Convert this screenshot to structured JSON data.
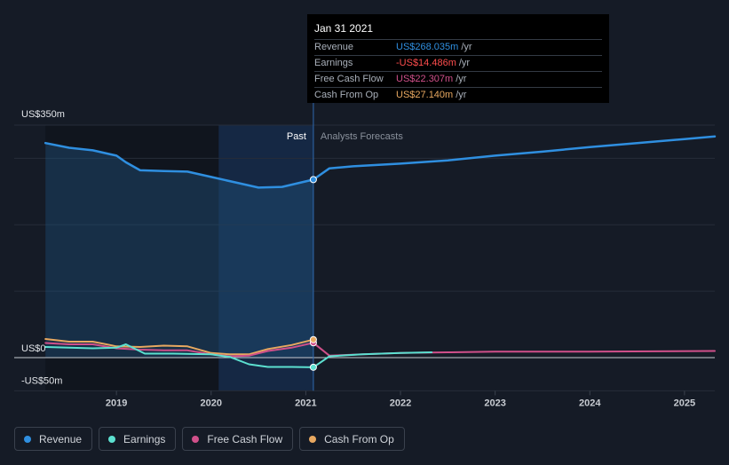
{
  "chart_data": {
    "type": "line",
    "title": "",
    "xlabel": "",
    "ylabel": "",
    "ylim": [
      -50,
      350
    ],
    "y_unit": "US$m",
    "y_axis_labels": [
      {
        "value": 350,
        "label": "US$350m"
      },
      {
        "value": 0,
        "label": "US$0"
      },
      {
        "value": -50,
        "label": "-US$50m"
      }
    ],
    "x_ticks": [
      {
        "x": 2019,
        "label": "2019"
      },
      {
        "x": 2020,
        "label": "2020"
      },
      {
        "x": 2021,
        "label": "2021"
      },
      {
        "x": 2022,
        "label": "2022"
      },
      {
        "x": 2023,
        "label": "2023"
      },
      {
        "x": 2024,
        "label": "2024"
      },
      {
        "x": 2025,
        "label": "2025"
      }
    ],
    "xlim": [
      2017.92,
      2025.32
    ],
    "past_label": "Past",
    "forecast_label": "Analysts Forecasts",
    "divider_x": 2021.08,
    "highlight_start": 2020.08,
    "series": [
      {
        "name": "Revenue",
        "color": "#2f8fe0",
        "points": [
          [
            2018.25,
            323
          ],
          [
            2018.5,
            316
          ],
          [
            2018.75,
            312
          ],
          [
            2019.0,
            304
          ],
          [
            2019.1,
            294
          ],
          [
            2019.25,
            282
          ],
          [
            2019.5,
            281
          ],
          [
            2019.75,
            280
          ],
          [
            2020.0,
            272
          ],
          [
            2020.25,
            264
          ],
          [
            2020.5,
            256
          ],
          [
            2020.75,
            257
          ],
          [
            2021.08,
            268
          ],
          [
            2021.25,
            285
          ],
          [
            2021.5,
            288
          ],
          [
            2022.0,
            292
          ],
          [
            2022.5,
            297
          ],
          [
            2023.0,
            304
          ],
          [
            2023.5,
            310
          ],
          [
            2024.0,
            317
          ],
          [
            2024.5,
            323
          ],
          [
            2025.0,
            329
          ],
          [
            2025.32,
            333
          ]
        ]
      },
      {
        "name": "Earnings",
        "color": "#5ce0d0",
        "points": [
          [
            2018.25,
            16
          ],
          [
            2018.5,
            15
          ],
          [
            2018.75,
            14
          ],
          [
            2019.0,
            15
          ],
          [
            2019.1,
            20
          ],
          [
            2019.3,
            6
          ],
          [
            2019.6,
            6
          ],
          [
            2020.0,
            5
          ],
          [
            2020.2,
            1
          ],
          [
            2020.4,
            -10
          ],
          [
            2020.6,
            -14
          ],
          [
            2020.85,
            -14
          ],
          [
            2021.08,
            -14.5
          ],
          [
            2021.25,
            2
          ],
          [
            2021.6,
            5
          ],
          [
            2022.0,
            7
          ],
          [
            2022.33,
            8
          ]
        ]
      },
      {
        "name": "Free Cash Flow",
        "color": "#d0508a",
        "points": [
          [
            2018.25,
            22
          ],
          [
            2018.5,
            20
          ],
          [
            2018.75,
            20
          ],
          [
            2019.0,
            14
          ],
          [
            2019.25,
            12
          ],
          [
            2019.5,
            11
          ],
          [
            2019.75,
            11
          ],
          [
            2020.0,
            5
          ],
          [
            2020.2,
            2
          ],
          [
            2020.4,
            3
          ],
          [
            2020.6,
            10
          ],
          [
            2020.85,
            15
          ],
          [
            2021.08,
            22.3
          ],
          [
            2021.25,
            3
          ],
          [
            2021.6,
            5
          ],
          [
            2022.0,
            7
          ],
          [
            2022.5,
            8
          ],
          [
            2023.0,
            9
          ],
          [
            2024.0,
            9
          ],
          [
            2025.32,
            10
          ]
        ]
      },
      {
        "name": "Cash From Op",
        "color": "#e8a860",
        "points": [
          [
            2018.25,
            28
          ],
          [
            2018.5,
            24
          ],
          [
            2018.75,
            24
          ],
          [
            2019.0,
            17
          ],
          [
            2019.25,
            16
          ],
          [
            2019.5,
            18
          ],
          [
            2019.75,
            17
          ],
          [
            2020.0,
            7
          ],
          [
            2020.2,
            5
          ],
          [
            2020.4,
            5
          ],
          [
            2020.6,
            13
          ],
          [
            2020.85,
            19
          ],
          [
            2021.08,
            27.1
          ]
        ]
      }
    ]
  },
  "tooltip": {
    "date": "Jan 31 2021",
    "rows": [
      {
        "label": "Revenue",
        "value": "US$268.035m",
        "unit": "/yr",
        "color": "#2f8fe0"
      },
      {
        "label": "Earnings",
        "value": "-US$14.486m",
        "unit": "/yr",
        "color": "#ff4d4d"
      },
      {
        "label": "Free Cash Flow",
        "value": "US$22.307m",
        "unit": "/yr",
        "color": "#d0508a"
      },
      {
        "label": "Cash From Op",
        "value": "US$27.140m",
        "unit": "/yr",
        "color": "#e8a860"
      }
    ]
  },
  "legend": [
    {
      "label": "Revenue",
      "color": "#2f8fe0"
    },
    {
      "label": "Earnings",
      "color": "#5ce0d0"
    },
    {
      "label": "Free Cash Flow",
      "color": "#d0508a"
    },
    {
      "label": "Cash From Op",
      "color": "#e8a860"
    }
  ]
}
